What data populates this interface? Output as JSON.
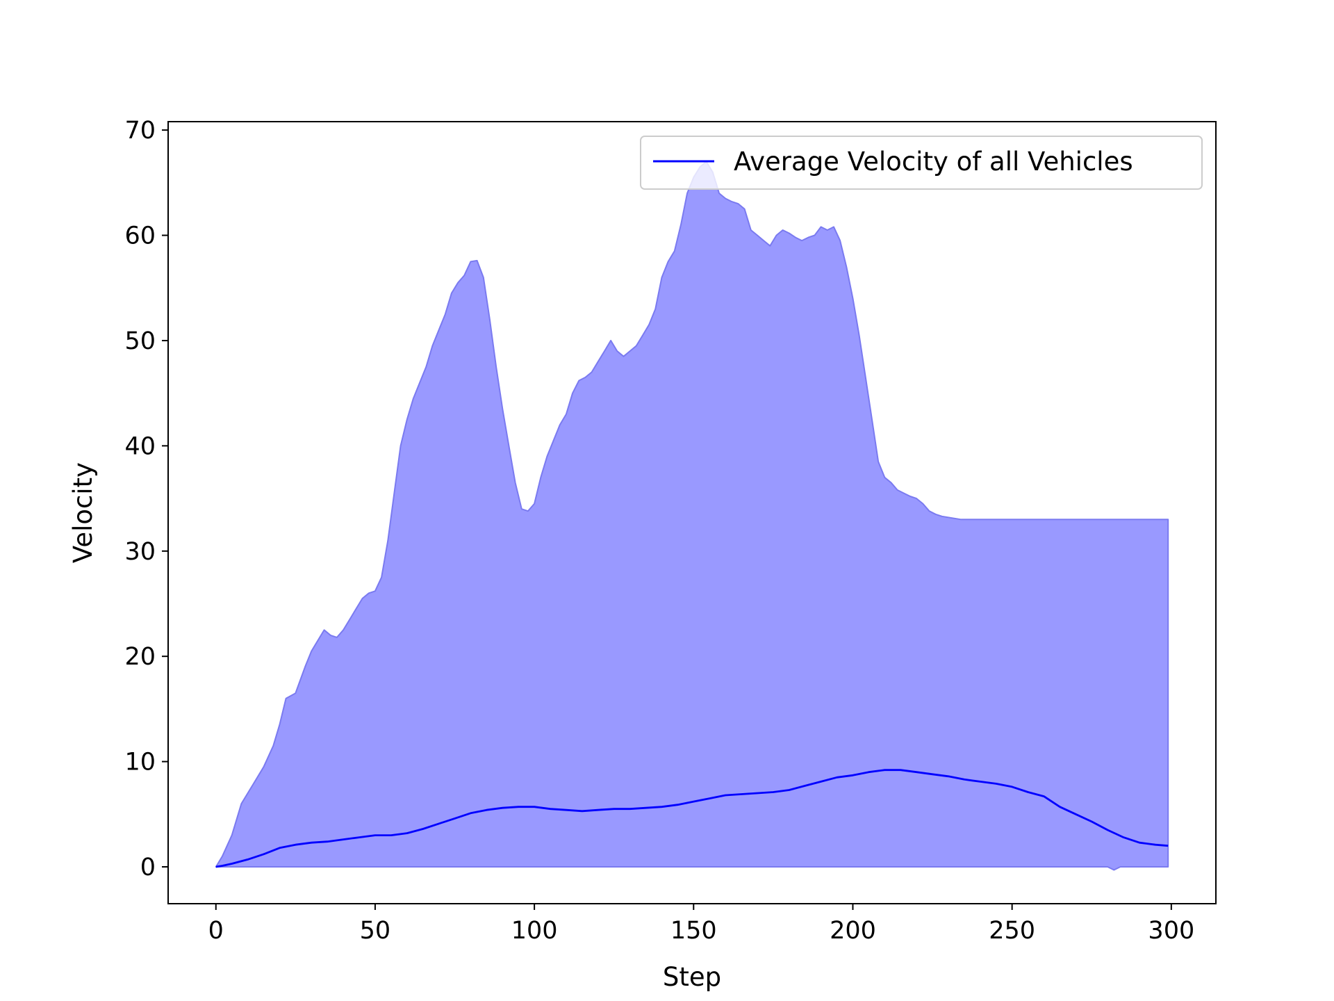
{
  "colors": {
    "line": "#0000ff",
    "band_fill": "#9999ff",
    "band_edge": "#7a7af0",
    "axes": "#000000",
    "legend_border": "#cccccc"
  },
  "chart_data": {
    "type": "line",
    "title": "",
    "xlabel": "Step",
    "ylabel": "Velocity",
    "xlim": [
      -15,
      314
    ],
    "ylim": [
      -3.5,
      70.8
    ],
    "xticks": [
      0,
      50,
      100,
      150,
      200,
      250,
      300
    ],
    "yticks": [
      0,
      10,
      20,
      30,
      40,
      50,
      60,
      70
    ],
    "grid": false,
    "legend": {
      "position": "top-right",
      "entries": [
        "Average Velocity of all Vehicles"
      ]
    },
    "series": [
      {
        "name": "Average Velocity of all Vehicles",
        "kind": "line",
        "x": [
          0,
          2,
          5,
          10,
          15,
          20,
          25,
          30,
          35,
          40,
          45,
          50,
          55,
          60,
          65,
          70,
          75,
          80,
          85,
          90,
          95,
          100,
          105,
          110,
          115,
          120,
          125,
          130,
          135,
          140,
          145,
          150,
          155,
          160,
          165,
          170,
          175,
          180,
          185,
          190,
          195,
          200,
          205,
          210,
          215,
          220,
          225,
          230,
          235,
          240,
          245,
          250,
          255,
          260,
          265,
          270,
          275,
          280,
          285,
          290,
          295,
          299
        ],
        "y": [
          0,
          0.1,
          0.3,
          0.7,
          1.2,
          1.8,
          2.1,
          2.3,
          2.4,
          2.6,
          2.8,
          3.0,
          3.0,
          3.2,
          3.6,
          4.1,
          4.6,
          5.1,
          5.4,
          5.6,
          5.7,
          5.7,
          5.5,
          5.4,
          5.3,
          5.4,
          5.5,
          5.5,
          5.6,
          5.7,
          5.9,
          6.2,
          6.5,
          6.8,
          6.9,
          7.0,
          7.1,
          7.3,
          7.7,
          8.1,
          8.5,
          8.7,
          9.0,
          9.2,
          9.2,
          9.0,
          8.8,
          8.6,
          8.3,
          8.1,
          7.9,
          7.6,
          7.1,
          6.7,
          5.7,
          5.0,
          4.3,
          3.5,
          2.8,
          2.3,
          2.1,
          2.0
        ]
      },
      {
        "kind": "band",
        "x": [
          0,
          2,
          5,
          8,
          10,
          12,
          15,
          18,
          20,
          22,
          25,
          28,
          30,
          32,
          34,
          36,
          38,
          40,
          42,
          44,
          46,
          48,
          50,
          52,
          54,
          56,
          58,
          60,
          62,
          64,
          66,
          68,
          70,
          72,
          74,
          76,
          78,
          80,
          82,
          84,
          86,
          88,
          90,
          92,
          94,
          96,
          98,
          100,
          102,
          104,
          106,
          108,
          110,
          112,
          114,
          116,
          118,
          120,
          122,
          124,
          125,
          126,
          128,
          130,
          132,
          134,
          136,
          138,
          140,
          142,
          144,
          146,
          148,
          150,
          152,
          154,
          156,
          158,
          160,
          162,
          164,
          166,
          168,
          170,
          172,
          174,
          176,
          178,
          180,
          182,
          184,
          186,
          188,
          190,
          192,
          194,
          196,
          198,
          200,
          202,
          204,
          206,
          208,
          210,
          212,
          214,
          216,
          218,
          220,
          222,
          224,
          226,
          228,
          230,
          232,
          234,
          236,
          238,
          240,
          242,
          244,
          246,
          248,
          250,
          252,
          254,
          256,
          258,
          260,
          262,
          264,
          266,
          268,
          270,
          272,
          274,
          276,
          278,
          280,
          282,
          284,
          286,
          288,
          290,
          292,
          294,
          296,
          298,
          299
        ],
        "upper": [
          0,
          1.0,
          3.0,
          6.0,
          7.0,
          8.0,
          9.5,
          11.5,
          13.5,
          16.0,
          16.5,
          19.0,
          20.5,
          21.5,
          22.5,
          22.0,
          21.8,
          22.5,
          23.5,
          24.5,
          25.5,
          26.0,
          26.2,
          27.5,
          31.0,
          35.5,
          40.0,
          42.5,
          44.5,
          46.0,
          47.5,
          49.5,
          51.0,
          52.5,
          54.5,
          55.5,
          56.2,
          57.5,
          57.6,
          56.0,
          52.0,
          47.5,
          43.5,
          40.0,
          36.5,
          34.0,
          33.8,
          34.5,
          37.0,
          39.0,
          40.5,
          42.0,
          43.0,
          45.0,
          46.2,
          46.5,
          47.0,
          48.0,
          49.0,
          50.0,
          49.5,
          49.0,
          48.5,
          49.0,
          49.5,
          50.5,
          51.5,
          53.0,
          56.0,
          57.5,
          58.5,
          61.0,
          64.0,
          65.5,
          66.5,
          67.0,
          66.0,
          64.0,
          63.5,
          63.2,
          63.0,
          62.5,
          60.5,
          60.0,
          59.5,
          59.0,
          60.0,
          60.5,
          60.2,
          59.8,
          59.5,
          59.8,
          60.0,
          60.8,
          60.5,
          60.8,
          59.5,
          57.0,
          54.0,
          50.5,
          46.5,
          42.5,
          38.5,
          37.0,
          36.5,
          35.8,
          35.5,
          35.2,
          35.0,
          34.5,
          33.8,
          33.5,
          33.3,
          33.2,
          33.1,
          33.0,
          33.0,
          33.0,
          33.0,
          33.0,
          33.0,
          33.0,
          33.0,
          33.0,
          33.0,
          33.0,
          33.0,
          33.0,
          33.0,
          33.0,
          33.0,
          33.0,
          33.0,
          33.0,
          33.0,
          33.0,
          33.0,
          33.0,
          33.0,
          33.0,
          33.0,
          33.0,
          33.0,
          33.0,
          33.0,
          33.0,
          33.0,
          33.0,
          33.0
        ],
        "lower": [
          0,
          0,
          0,
          0,
          0,
          0,
          0,
          0,
          0,
          0,
          0,
          0,
          0,
          0,
          0,
          0,
          0,
          0,
          0,
          0,
          0,
          0,
          0,
          0,
          0,
          0,
          0,
          0,
          0,
          0,
          0,
          0,
          0,
          0,
          0,
          0,
          0,
          0,
          0,
          0,
          0,
          0,
          0,
          0,
          0,
          0,
          0,
          0,
          0,
          0,
          0,
          0,
          0,
          0,
          0,
          0,
          0,
          0,
          0,
          0,
          0,
          0,
          0,
          0,
          0,
          0,
          0,
          0,
          0,
          0,
          0,
          0,
          0,
          0,
          0,
          0,
          0,
          0,
          0,
          0,
          0,
          0,
          0,
          0,
          0,
          0,
          0,
          0,
          0,
          0,
          0,
          0,
          0,
          0,
          0,
          0,
          0,
          0,
          0,
          0,
          0,
          0,
          0,
          0,
          0,
          0,
          0,
          0,
          0,
          0,
          0,
          0,
          0,
          0,
          0,
          0,
          0,
          0,
          0,
          0,
          0,
          0,
          0,
          0,
          0,
          0,
          0,
          0,
          0,
          0,
          0,
          0,
          0,
          0,
          0,
          0,
          0,
          0,
          0,
          -0.3,
          0,
          0,
          0,
          0,
          0,
          0,
          0,
          0,
          0
        ]
      }
    ]
  }
}
